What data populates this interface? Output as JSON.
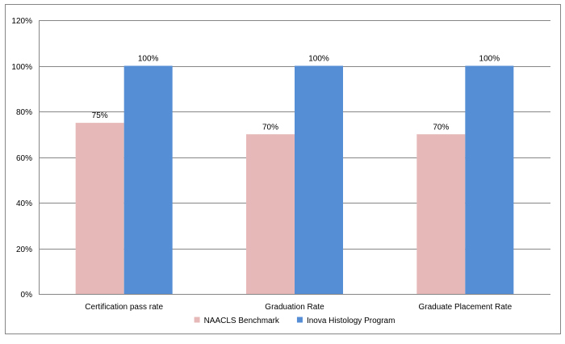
{
  "chart_data": {
    "type": "bar",
    "categories": [
      "Certification pass rate",
      "Graduation Rate",
      "Graduate Placement Rate"
    ],
    "series": [
      {
        "name": "NAACLS Benchmark",
        "values": [
          75,
          70,
          70
        ],
        "labels": [
          "75%",
          "70%",
          "70%"
        ],
        "color": "#e6b9b8"
      },
      {
        "name": "Inova Histology Program",
        "values": [
          100,
          100,
          100
        ],
        "labels": [
          "100%",
          "100%",
          "100%"
        ],
        "color": "#558ed5"
      }
    ],
    "ylim": [
      0,
      120
    ],
    "yticks": [
      0,
      20,
      40,
      60,
      80,
      100,
      120
    ],
    "ytick_labels": [
      "0%",
      "20%",
      "40%",
      "60%",
      "80%",
      "100%",
      "120%"
    ],
    "grid": true,
    "legend_position": "bottom",
    "colors": {
      "gridline": "#868686",
      "border": "#868686"
    }
  }
}
